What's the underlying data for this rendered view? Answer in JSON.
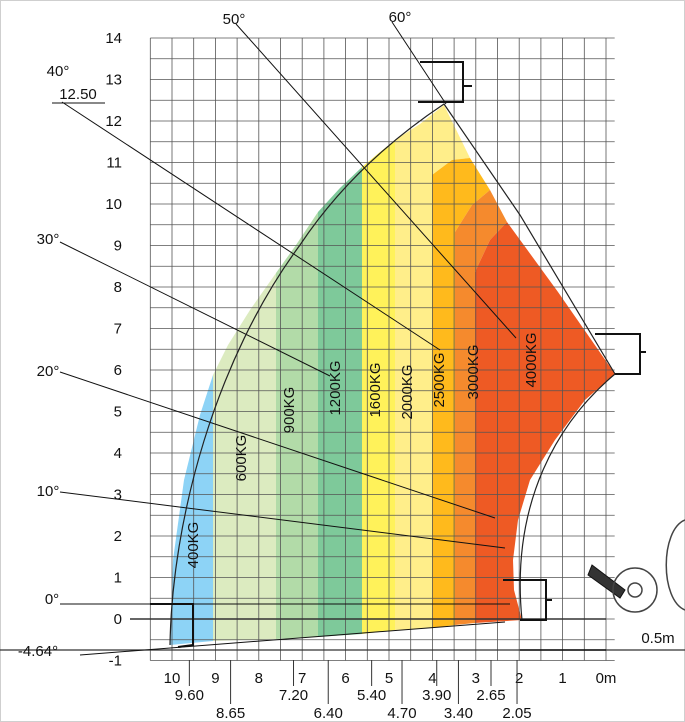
{
  "chart_data": {
    "type": "load-chart",
    "x_unit_label": "m",
    "y_unit_label": "",
    "x_ticks": [
      "10",
      "9",
      "8",
      "7",
      "6",
      "5",
      "4",
      "3",
      "2",
      "1",
      "0m"
    ],
    "x_sub_ticks": [
      "9.60",
      "8.65",
      "7.20",
      "6.40",
      "5.40",
      "4.70",
      "3.90",
      "3.40",
      "2.65",
      "2.05"
    ],
    "y_ticks": [
      "-1",
      "0",
      "1",
      "2",
      "3",
      "4",
      "5",
      "6",
      "7",
      "8",
      "9",
      "10",
      "11",
      "12",
      "13",
      "14"
    ],
    "max_height_label": "12.50",
    "min_height_label": "-4.64°",
    "offset_label": "0.5m",
    "xlim": [
      10.5,
      -0.2
    ],
    "ylim": [
      -1,
      14
    ],
    "angles": [
      {
        "label": "60°"
      },
      {
        "label": "50°"
      },
      {
        "label": "40°"
      },
      {
        "label": "30°"
      },
      {
        "label": "20°"
      },
      {
        "label": "10°"
      },
      {
        "label": "0°"
      }
    ],
    "zones": [
      {
        "label": "400KG",
        "color": "#8dd3f6"
      },
      {
        "label": "600KG",
        "color": "#dcebc0"
      },
      {
        "label": "900KG",
        "color": "#b2dba8"
      },
      {
        "label": "1200KG",
        "color": "#7ec99a"
      },
      {
        "label": "1600KG",
        "color": "#fff25a"
      },
      {
        "label": "2000KG",
        "color": "#ffee8a"
      },
      {
        "label": "2500KG",
        "color": "#ffba1c"
      },
      {
        "label": "3000KG",
        "color": "#f58a2d"
      },
      {
        "label": "4000KG",
        "color": "#ee5a24"
      }
    ]
  }
}
